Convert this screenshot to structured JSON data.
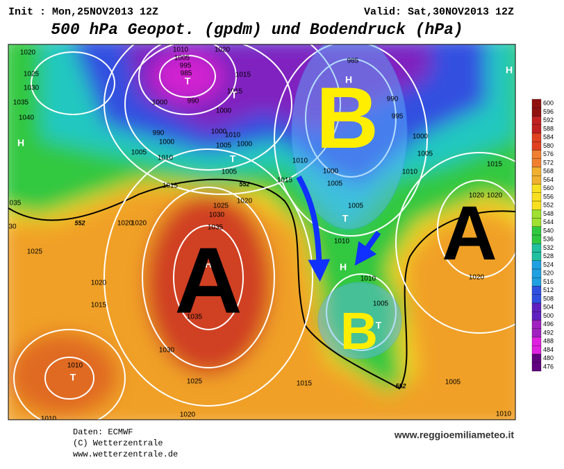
{
  "header": {
    "init": "Init : Mon,25NOV2013 12Z",
    "valid": "Valid: Sat,30NOV2013 12Z",
    "title": "500 hPa Geopot. (gpdm) und Bodendruck (hPa)"
  },
  "map": {
    "systems": [
      "B",
      "A",
      "A",
      "B"
    ],
    "isobar_labels": [
      "1020",
      "1025",
      "1030",
      "1035",
      "1040",
      "1010",
      "1020",
      "1005",
      "995",
      "985",
      "1015",
      "1015",
      "1000",
      "990",
      "1000",
      "1000",
      "1010",
      "1000",
      "1005",
      "990",
      "1000",
      "1005",
      "1010",
      "1005",
      "1010",
      "1015",
      "1015",
      "1025",
      "1020",
      "1020",
      "1020",
      "1030",
      "1035",
      "1025",
      "1020",
      "1015",
      "1035",
      "1030",
      "1025",
      "1010",
      "1020",
      "1015",
      "1010",
      "1000",
      "1005",
      "1005",
      "985",
      "990",
      "995",
      "1000",
      "1005",
      "1010",
      "1015",
      "1020",
      "1020",
      "1020",
      "1010",
      "1005",
      "1005",
      "1010",
      "035",
      "30",
      "1010"
    ],
    "markers": [
      "H",
      "H",
      "H",
      "H",
      "H",
      "T",
      "T",
      "T",
      "T",
      "T",
      "T"
    ],
    "isohypse_labels": [
      "552",
      "552",
      "552"
    ]
  },
  "colorbar": {
    "labels": [
      "600",
      "596",
      "592",
      "588",
      "584",
      "580",
      "576",
      "572",
      "568",
      "564",
      "560",
      "556",
      "552",
      "548",
      "544",
      "540",
      "536",
      "532",
      "528",
      "524",
      "520",
      "516",
      "512",
      "508",
      "504",
      "500",
      "496",
      "492",
      "488",
      "484",
      "480",
      "476"
    ]
  },
  "footer": {
    "source": "Daten: ECMWF",
    "copyright": "(C) Wetterzentrale",
    "url": "www.wetterzentrale.de",
    "credit": "www.reggioemiliameteo.it"
  }
}
